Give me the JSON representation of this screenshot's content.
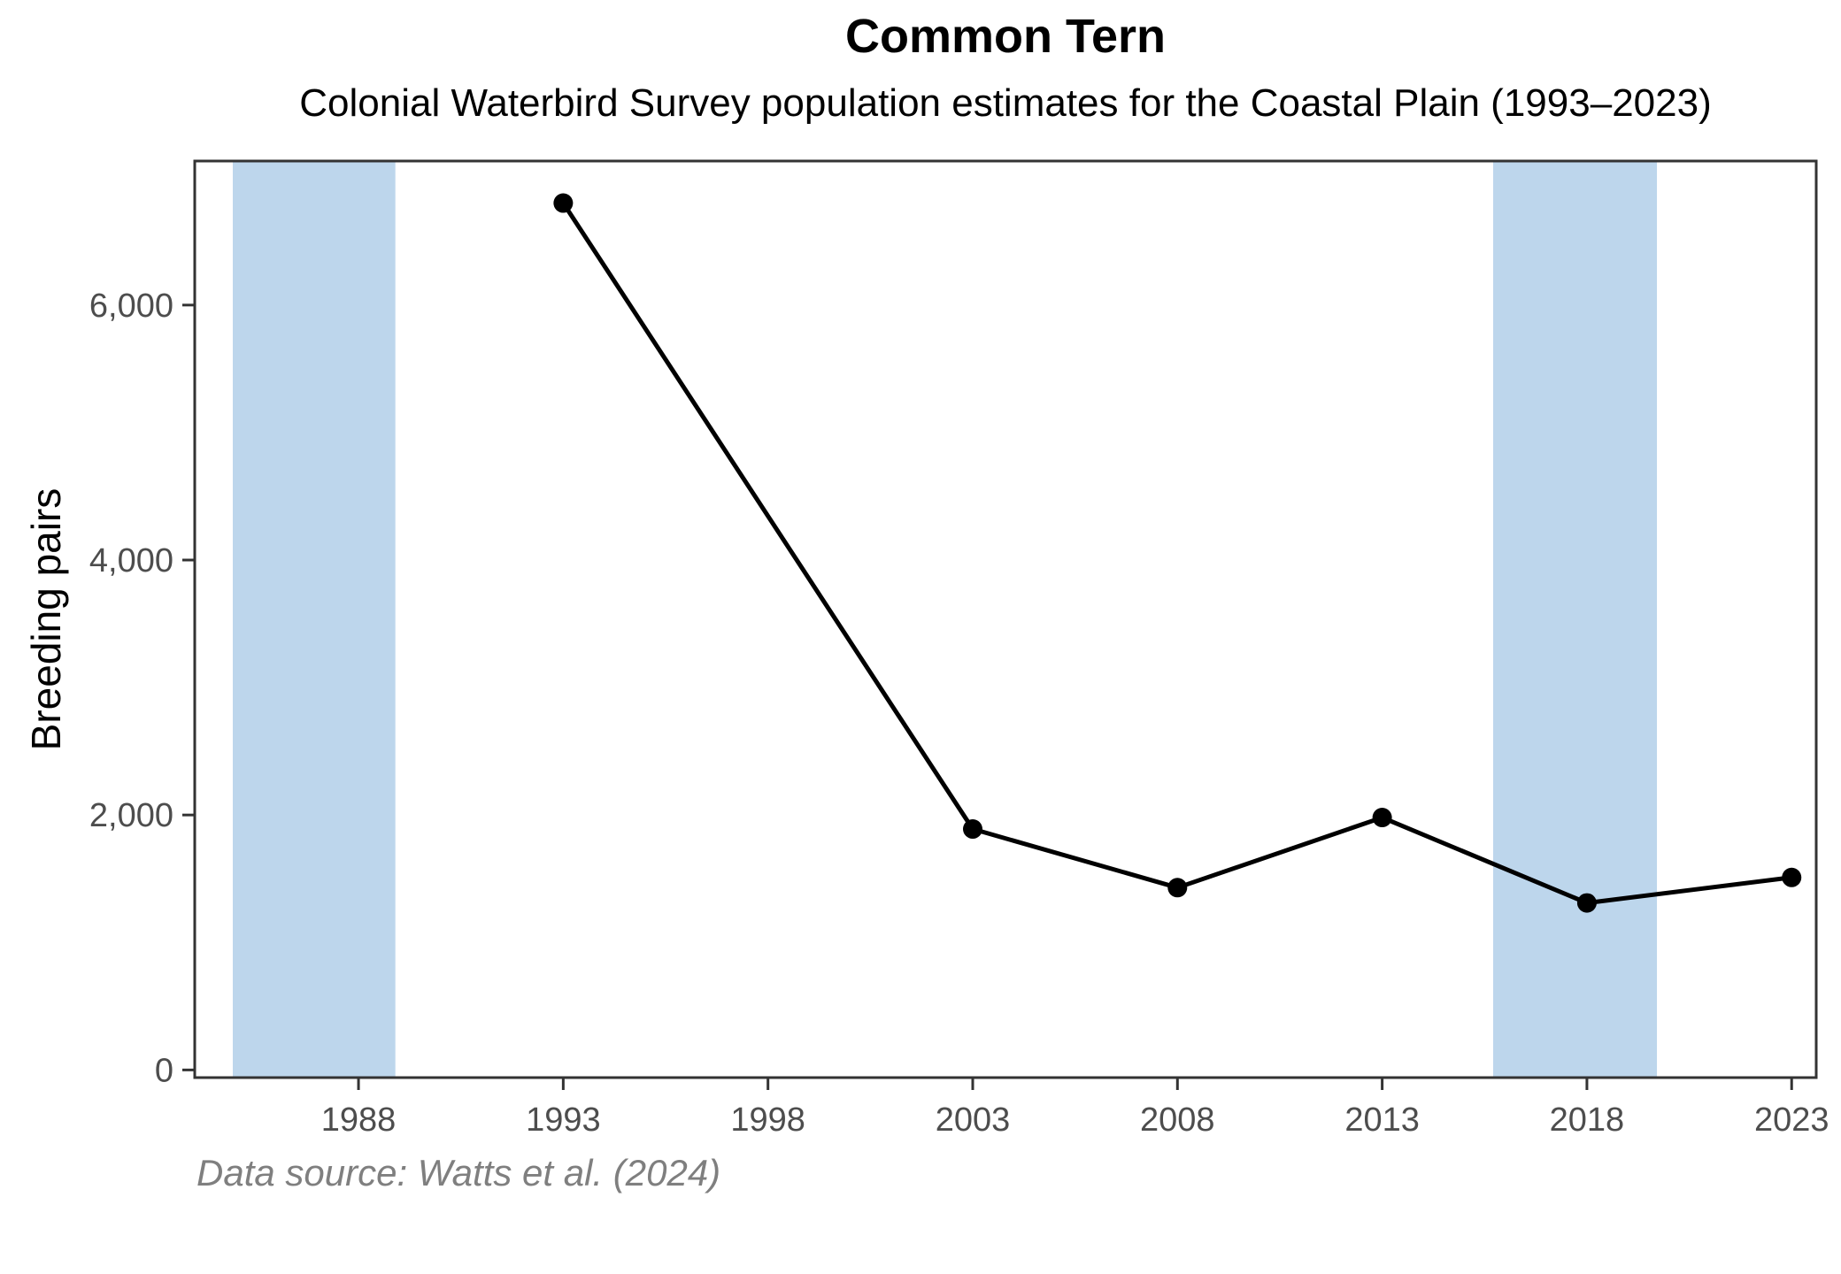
{
  "chart_data": {
    "type": "line",
    "title": "Common Tern",
    "subtitle": "Colonial Waterbird Survey population estimates for the Coastal Plain (1993–2023)",
    "ylabel": "Breeding pairs",
    "xlabel": "",
    "caption": "Data source: Watts et al. (2024)",
    "series": [
      {
        "name": "Breeding pairs",
        "x": [
          1993,
          2003,
          2008,
          2013,
          2018,
          2023
        ],
        "values": [
          6800,
          1890,
          1430,
          1980,
          1310,
          1510
        ]
      }
    ],
    "x_ticks": [
      1988,
      1993,
      1998,
      2003,
      2008,
      2013,
      2018,
      2023
    ],
    "x_tick_labels": [
      "1988",
      "1993",
      "1998",
      "2003",
      "2008",
      "2013",
      "2018",
      "2023"
    ],
    "y_ticks": [
      0,
      2000,
      4000,
      6000
    ],
    "y_tick_labels": [
      "0",
      "2,000",
      "4,000",
      "6,000"
    ],
    "xlim": [
      1984.0,
      2023.6
    ],
    "ylim": [
      -60,
      7130
    ],
    "grid": "off",
    "legend": "none",
    "shaded_bands": [
      {
        "from": 1984.93,
        "to": 1988.9
      },
      {
        "from": 2015.71,
        "to": 2019.71
      }
    ],
    "colors": {
      "line": "#000000",
      "point": "#000000",
      "band": "#bdd6ec",
      "axis": "#333333",
      "tick_text": "#4d4d4d",
      "caption_text": "#7f7f7f"
    }
  }
}
